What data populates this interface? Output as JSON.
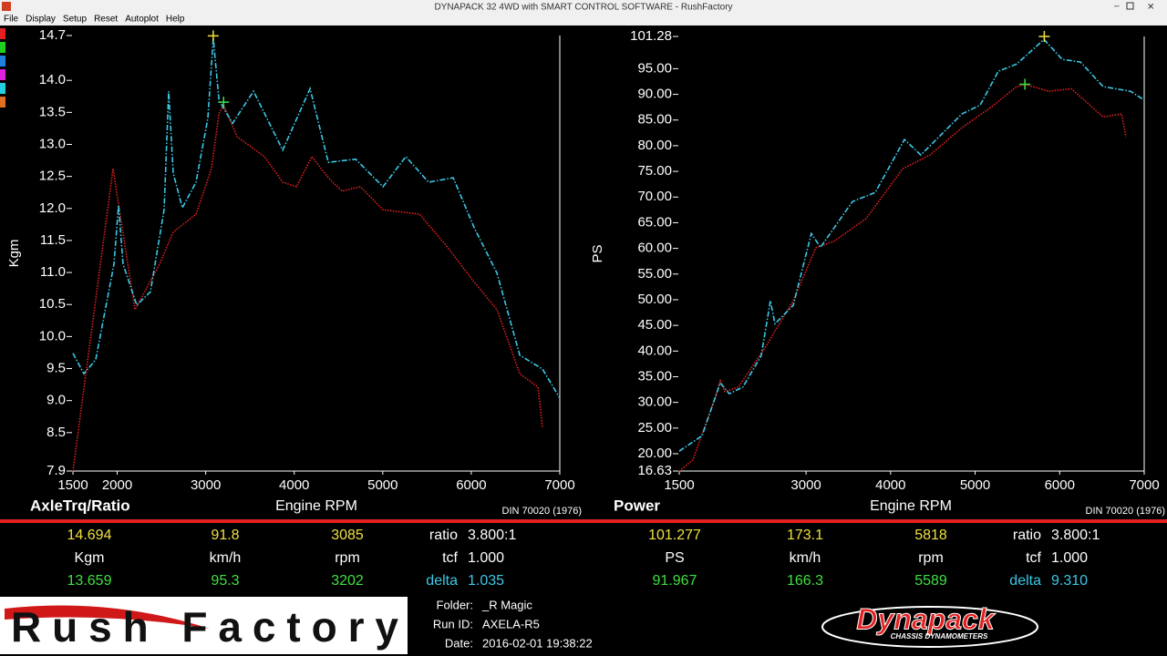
{
  "window": {
    "title": "DYNAPACK 32 4WD with SMART CONTROL SOFTWARE - RushFactory"
  },
  "menu": [
    "File",
    "Display",
    "Setup",
    "Reset",
    "Autoplot",
    "Help"
  ],
  "chart_data": [
    {
      "type": "line",
      "title": "AxleTrq/Ratio",
      "x_label": "Engine RPM",
      "y_label": "Kgm",
      "note": "DIN 70020 (1976)",
      "xlim": [
        1500,
        7000
      ],
      "xticks": [
        1500,
        2000,
        3000,
        4000,
        5000,
        6000,
        7000
      ],
      "ylim": [
        7.9,
        14.7
      ],
      "yticks": [
        7.9,
        8.5,
        {
          "value": 9,
          "label": "9.0"
        },
        9.5,
        {
          "value": 10,
          "label": "10.0"
        },
        10.5,
        {
          "value": 11,
          "label": "11.0"
        },
        11.5,
        {
          "value": 12,
          "label": "12.0"
        },
        12.5,
        {
          "value": 13,
          "label": "13.0"
        },
        13.5,
        {
          "value": 14,
          "label": "14.0"
        },
        14.7
      ],
      "series": [
        {
          "color": "#e42020",
          "line_style": "dotted",
          "x": [
            1500,
            1953,
            2200,
            2478,
            2633,
            2890,
            3065,
            3150,
            3200,
            3355,
            3664,
            3870,
            4025,
            4200,
            4385,
            4540,
            4746,
            5003,
            5415,
            5724,
            6033,
            6290,
            6548,
            6754,
            6805
          ],
          "values": [
            7.9,
            12.62,
            10.42,
            11.13,
            11.63,
            11.91,
            12.62,
            13.48,
            13.62,
            13.12,
            12.81,
            12.41,
            12.34,
            12.81,
            12.48,
            12.27,
            12.34,
            11.98,
            11.91,
            11.41,
            10.85,
            10.42,
            9.42,
            9.21,
            8.57
          ]
        },
        {
          "color": "#3cc8e6",
          "line_style": "dash-dot",
          "x": [
            1500,
            1624,
            1758,
            1963,
            2015,
            2066,
            2221,
            2375,
            2530,
            2581,
            2633,
            2736,
            2890,
            3024,
            3085,
            3150,
            3303,
            3540,
            3870,
            4179,
            4385,
            4694,
            5003,
            5260,
            5518,
            5796,
            6033,
            6290,
            6548,
            6805,
            7000
          ],
          "values": [
            9.74,
            9.42,
            9.64,
            11.13,
            12.05,
            11.13,
            10.49,
            10.7,
            11.98,
            13.83,
            12.55,
            12.01,
            12.41,
            13.41,
            14.66,
            13.69,
            13.33,
            13.83,
            12.91,
            13.87,
            12.72,
            12.77,
            12.34,
            12.81,
            12.41,
            12.48,
            11.7,
            10.99,
            9.71,
            9.49,
            9.04
          ]
        }
      ],
      "markers": [
        {
          "x": 3085,
          "y": 14.694,
          "color": "#f0e040"
        },
        {
          "x": 3202,
          "y": 13.659,
          "color": "#40e040"
        }
      ]
    },
    {
      "type": "line",
      "title": "Power",
      "x_label": "Engine RPM",
      "y_label": "PS",
      "note": "DIN 70020 (1976)",
      "xlim": [
        1500,
        7000
      ],
      "xticks": [
        1500,
        3000,
        4000,
        5000,
        6000,
        7000
      ],
      "ylim": [
        16.63,
        101.28
      ],
      "yticks": [
        16.63,
        {
          "value": 20,
          "label": "20.00"
        },
        {
          "value": 25,
          "label": "25.00"
        },
        {
          "value": 30,
          "label": "30.00"
        },
        {
          "value": 35,
          "label": "35.00"
        },
        {
          "value": 40,
          "label": "40.00"
        },
        {
          "value": 45,
          "label": "45.00"
        },
        {
          "value": 50,
          "label": "50.00"
        },
        {
          "value": 55,
          "label": "55.00"
        },
        {
          "value": 60,
          "label": "60.00"
        },
        {
          "value": 65,
          "label": "65.00"
        },
        {
          "value": 70,
          "label": "70.00"
        },
        {
          "value": 75,
          "label": "75.00"
        },
        {
          "value": 80,
          "label": "80.00"
        },
        {
          "value": 85,
          "label": "85.00"
        },
        {
          "value": 90,
          "label": "90.00"
        },
        {
          "value": 95,
          "label": "95.00"
        },
        101.28
      ],
      "series": [
        {
          "color": "#e42020",
          "line_style": "dotted",
          "x": [
            1500,
            1662,
            1931,
            1985,
            2039,
            2200,
            2524,
            2848,
            3117,
            3333,
            3711,
            4142,
            4466,
            4844,
            5221,
            5491,
            5589,
            5868,
            6138,
            6515,
            6731,
            6785
          ],
          "values": [
            16.63,
            18.8,
            31.2,
            34.2,
            32.1,
            33.0,
            40.9,
            49.8,
            60.1,
            61.4,
            65.8,
            75.5,
            78.2,
            83.5,
            87.9,
            91.5,
            91.97,
            90.6,
            91.1,
            85.6,
            86.2,
            81.7
          ]
        },
        {
          "color": "#3cc8e6",
          "line_style": "dash-dot",
          "x": [
            1500,
            1770,
            1985,
            2092,
            2254,
            2470,
            2578,
            2632,
            2848,
            3063,
            3171,
            3549,
            3819,
            4164,
            4358,
            4844,
            5059,
            5275,
            5491,
            5815,
            6030,
            6246,
            6515,
            6839,
            7000
          ],
          "values": [
            20.5,
            23.5,
            33.8,
            31.7,
            33.0,
            39.1,
            49.8,
            45.3,
            48.9,
            62.9,
            60.2,
            69.1,
            70.9,
            81.2,
            78.2,
            86.2,
            87.9,
            94.5,
            95.9,
            100.7,
            96.8,
            96.3,
            91.5,
            90.6,
            88.9
          ]
        }
      ],
      "markers": [
        {
          "x": 5818,
          "y": 101.277,
          "color": "#f0e040"
        },
        {
          "x": 5589,
          "y": 91.967,
          "color": "#40e040"
        }
      ]
    }
  ],
  "readouts": [
    {
      "rows": [
        [
          14.694,
          91.8,
          3085,
          "ratio",
          "3.800:1"
        ],
        [
          "Kgm",
          "km/h",
          "rpm",
          "tcf",
          "1.000"
        ],
        [
          13.659,
          95.3,
          3202,
          "delta",
          1.035
        ]
      ]
    },
    {
      "rows": [
        [
          101.277,
          173.1,
          5818,
          "ratio",
          "3.800:1"
        ],
        [
          "PS",
          "km/h",
          "rpm",
          "tcf",
          "1.000"
        ],
        [
          91.967,
          166.3,
          5589,
          "delta",
          "9.310"
        ]
      ]
    }
  ],
  "info": {
    "folder_label": "Folder:",
    "folder": "_R Magic",
    "run_label": "Run ID:",
    "run": "AXELA-R5",
    "date_label": "Date:",
    "date": "2016-02-01 19:38:22"
  },
  "logos": {
    "rush": "Rush Factory",
    "dynapack": "Dynapack",
    "dynapack_sub": "CHASSIS DYNAMOMETERS"
  }
}
